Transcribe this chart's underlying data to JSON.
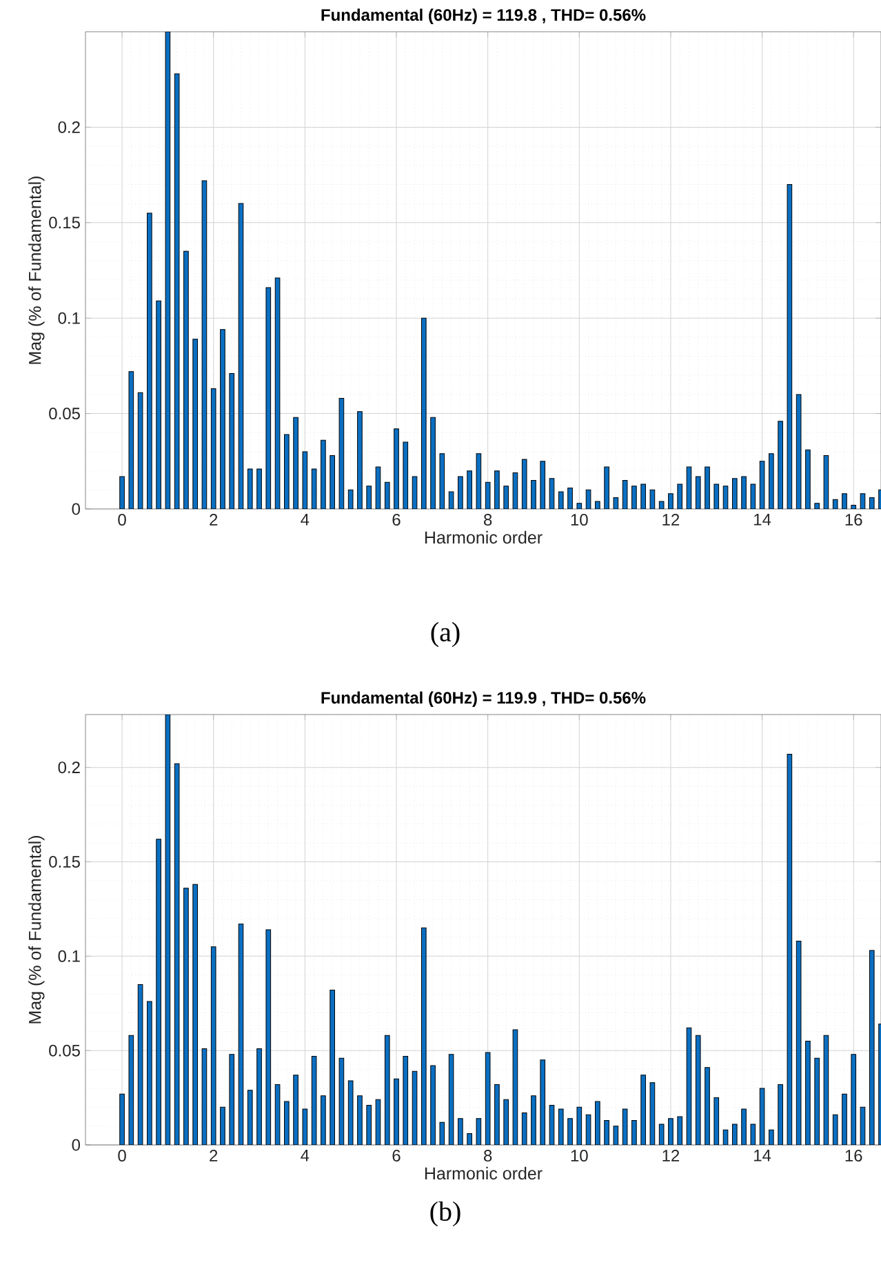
{
  "chart_data": [
    {
      "type": "bar",
      "title": "Fundamental (60Hz) = 119.8 , THD= 0.56%",
      "xlabel": "Harmonic order",
      "ylabel": "Mag (% of Fundamental)",
      "annotations": [
        "(a)"
      ],
      "color": "#0a6fc2",
      "grid": true,
      "xlim": [
        -0.8,
        16.6
      ],
      "ylim": [
        0,
        0.25
      ],
      "xticks": [
        0,
        2,
        4,
        6,
        8,
        10,
        12,
        14,
        16
      ],
      "yticks": [
        0,
        0.05,
        0.1,
        0.15,
        0.2
      ],
      "x": [
        0,
        0.2,
        0.4,
        0.6,
        0.8,
        1,
        1.2,
        1.4,
        1.6,
        1.8,
        2,
        2.2,
        2.4,
        2.6,
        2.8,
        3,
        3.2,
        3.4,
        3.6,
        3.8,
        4,
        4.2,
        4.4,
        4.6,
        4.8,
        5,
        5.2,
        5.4,
        5.6,
        5.8,
        6,
        6.2,
        6.4,
        6.6,
        6.8,
        7,
        7.2,
        7.4,
        7.6,
        7.8,
        8,
        8.2,
        8.4,
        8.6,
        8.8,
        9,
        9.2,
        9.4,
        9.6,
        9.8,
        10,
        10.2,
        10.4,
        10.6,
        10.8,
        11,
        11.2,
        11.4,
        11.6,
        11.8,
        12,
        12.2,
        12.4,
        12.6,
        12.8,
        13,
        13.2,
        13.4,
        13.6,
        13.8,
        14,
        14.2,
        14.4,
        14.6,
        14.8,
        15,
        15.2,
        15.4,
        15.6,
        15.8,
        16,
        16.2,
        16.4,
        16.6
      ],
      "values": [
        0.017,
        0.072,
        0.061,
        0.155,
        0.109,
        0.25,
        0.228,
        0.135,
        0.089,
        0.172,
        0.063,
        0.094,
        0.071,
        0.16,
        0.021,
        0.021,
        0.116,
        0.121,
        0.039,
        0.048,
        0.03,
        0.021,
        0.036,
        0.028,
        0.058,
        0.01,
        0.051,
        0.012,
        0.022,
        0.014,
        0.042,
        0.035,
        0.017,
        0.1,
        0.048,
        0.029,
        0.009,
        0.017,
        0.02,
        0.029,
        0.014,
        0.02,
        0.012,
        0.019,
        0.026,
        0.015,
        0.025,
        0.016,
        0.009,
        0.011,
        0.003,
        0.01,
        0.004,
        0.022,
        0.006,
        0.015,
        0.012,
        0.013,
        0.01,
        0.004,
        0.008,
        0.013,
        0.022,
        0.017,
        0.022,
        0.013,
        0.012,
        0.016,
        0.017,
        0.013,
        0.025,
        0.029,
        0.046,
        0.17,
        0.06,
        0.031,
        0.003,
        0.028,
        0.005,
        0.008,
        0.002,
        0.008,
        0.006,
        0.01
      ]
    },
    {
      "type": "bar",
      "title": "Fundamental (60Hz) = 119.9 , THD= 0.56%",
      "xlabel": "Harmonic order",
      "ylabel": "Mag (% of Fundamental)",
      "annotations": [
        "(b)"
      ],
      "color": "#0a6fc2",
      "grid": true,
      "xlim": [
        -0.8,
        16.6
      ],
      "ylim": [
        0,
        0.228
      ],
      "xticks": [
        0,
        2,
        4,
        6,
        8,
        10,
        12,
        14,
        16
      ],
      "yticks": [
        0,
        0.05,
        0.1,
        0.15,
        0.2
      ],
      "x": [
        0,
        0.2,
        0.4,
        0.6,
        0.8,
        1,
        1.2,
        1.4,
        1.6,
        1.8,
        2,
        2.2,
        2.4,
        2.6,
        2.8,
        3,
        3.2,
        3.4,
        3.6,
        3.8,
        4,
        4.2,
        4.4,
        4.6,
        4.8,
        5,
        5.2,
        5.4,
        5.6,
        5.8,
        6,
        6.2,
        6.4,
        6.6,
        6.8,
        7,
        7.2,
        7.4,
        7.6,
        7.8,
        8,
        8.2,
        8.4,
        8.6,
        8.8,
        9,
        9.2,
        9.4,
        9.6,
        9.8,
        10,
        10.2,
        10.4,
        10.6,
        10.8,
        11,
        11.2,
        11.4,
        11.6,
        11.8,
        12,
        12.2,
        12.4,
        12.6,
        12.8,
        13,
        13.2,
        13.4,
        13.6,
        13.8,
        14,
        14.2,
        14.4,
        14.6,
        14.8,
        15,
        15.2,
        15.4,
        15.6,
        15.8,
        16,
        16.2,
        16.4,
        16.6
      ],
      "values": [
        0.027,
        0.058,
        0.085,
        0.076,
        0.162,
        0.228,
        0.202,
        0.136,
        0.138,
        0.051,
        0.105,
        0.02,
        0.048,
        0.117,
        0.029,
        0.051,
        0.114,
        0.032,
        0.023,
        0.037,
        0.019,
        0.047,
        0.026,
        0.082,
        0.046,
        0.034,
        0.026,
        0.021,
        0.024,
        0.058,
        0.035,
        0.047,
        0.039,
        0.115,
        0.042,
        0.012,
        0.048,
        0.014,
        0.006,
        0.014,
        0.049,
        0.032,
        0.024,
        0.061,
        0.017,
        0.026,
        0.045,
        0.021,
        0.019,
        0.014,
        0.02,
        0.016,
        0.023,
        0.013,
        0.01,
        0.019,
        0.013,
        0.037,
        0.033,
        0.011,
        0.014,
        0.015,
        0.062,
        0.058,
        0.041,
        0.025,
        0.008,
        0.011,
        0.019,
        0.011,
        0.03,
        0.008,
        0.032,
        0.207,
        0.108,
        0.055,
        0.046,
        0.058,
        0.016,
        0.027,
        0.048,
        0.02,
        0.103,
        0.064
      ]
    }
  ]
}
